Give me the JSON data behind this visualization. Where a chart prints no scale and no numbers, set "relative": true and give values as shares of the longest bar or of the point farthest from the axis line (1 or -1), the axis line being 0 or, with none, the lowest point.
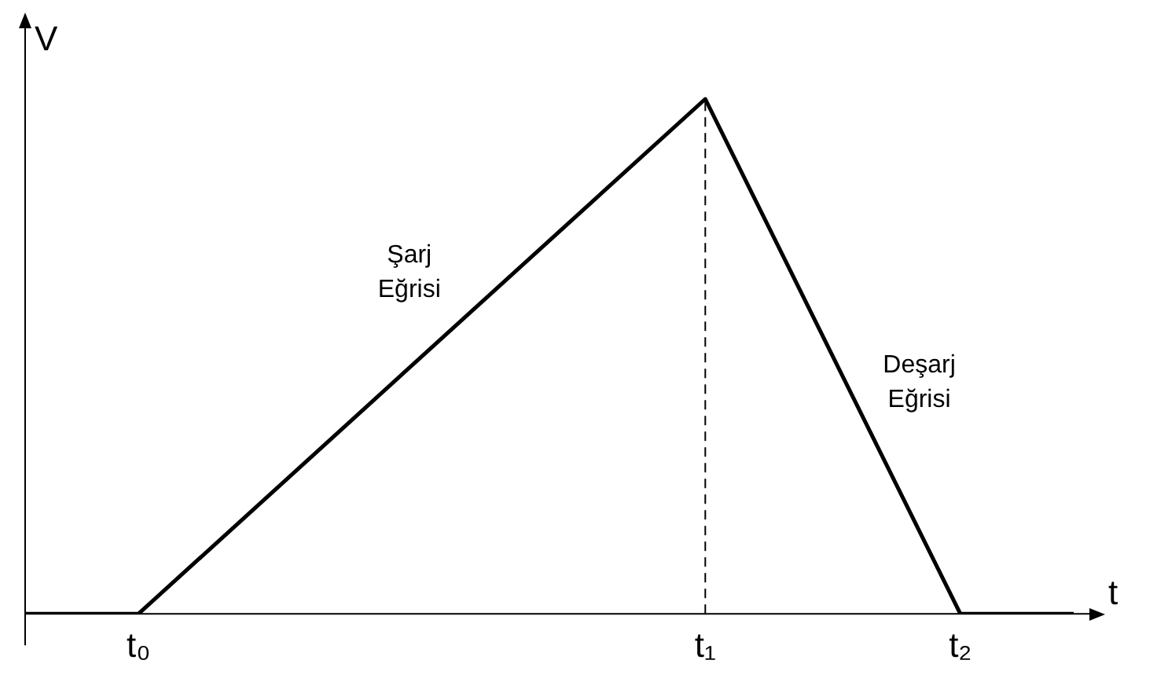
{
  "chart_data": {
    "type": "line",
    "relative": true,
    "xlabel": "t",
    "ylabel": "V",
    "categories": [
      null,
      null,
      null,
      null,
      "t₀",
      null,
      null,
      null,
      null,
      null,
      null,
      null,
      null,
      null,
      null,
      null,
      null,
      null,
      null,
      null,
      null,
      null,
      null,
      null,
      "t₁",
      null,
      null,
      null,
      null,
      null,
      null,
      null,
      null,
      "t₂",
      null,
      null,
      null,
      null
    ],
    "series": [
      {
        "color": "#000000",
        "values": [
          0,
          null,
          null,
          null,
          0,
          null,
          null,
          null,
          null,
          null,
          null,
          null,
          null,
          null,
          null,
          null,
          null,
          null,
          null,
          null,
          null,
          null,
          null,
          null,
          1,
          null,
          null,
          null,
          null,
          null,
          null,
          null,
          null,
          0,
          null,
          null,
          null,
          0
        ]
      }
    ],
    "ref_lines": [
      {
        "axis": "x",
        "value": "t₁",
        "color": "#000000",
        "line_style": "dashed"
      }
    ],
    "annotations": [
      "Şarj Eğrisi",
      "Deşarj Eğrisi"
    ],
    "grid": false,
    "legend": false,
    "marker": "none",
    "line_style": "solid"
  }
}
